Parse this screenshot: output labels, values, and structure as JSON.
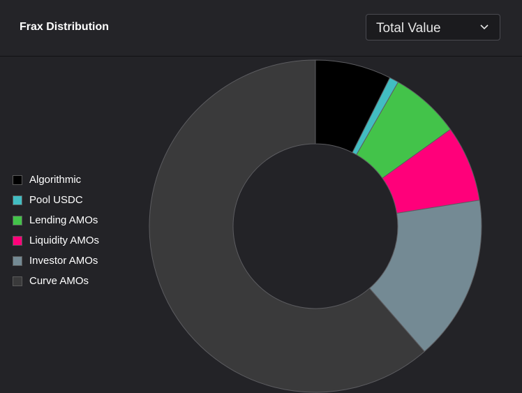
{
  "header": {
    "title": "Frax Distribution",
    "dropdown_value": "Total Value"
  },
  "chart_data": {
    "type": "pie",
    "categories": [
      "Algorithmic",
      "Pool USDC",
      "Lending AMOs",
      "Liquidity AMOs",
      "Investor AMOs",
      "Curve AMOs"
    ],
    "values": [
      7.4,
      0.9,
      6.8,
      7.4,
      16.1,
      61.4
    ],
    "colors": [
      "#000000",
      "#42bdc2",
      "#43c34a",
      "#ff007a",
      "#748a94",
      "#3a3a3b"
    ],
    "legend_position": "left"
  }
}
